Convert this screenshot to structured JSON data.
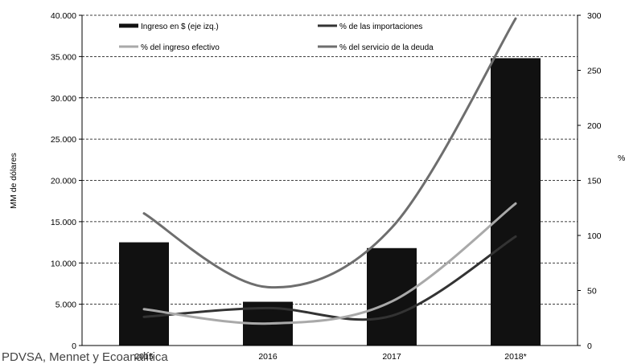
{
  "chart_data": {
    "type": "bar",
    "categories": [
      "2015",
      "2016",
      "2017",
      "2018*"
    ],
    "y_left": {
      "label": "MM de dólares",
      "ylim": [
        0,
        40000
      ],
      "ticks": [
        "0",
        "5.000",
        "10.000",
        "15.000",
        "20.000",
        "25.000",
        "30.000",
        "35.000",
        "40.000"
      ]
    },
    "y_right": {
      "label": "%",
      "ylim": [
        0,
        300
      ],
      "ticks": [
        "0",
        "50",
        "100",
        "150",
        "200",
        "250",
        "300"
      ]
    },
    "grid": "horizontal dashed",
    "legend_position": "top",
    "series": [
      {
        "name": "Ingreso en $ (eje izq.)",
        "type": "bar",
        "axis": "left",
        "color": "#111111",
        "values": [
          12500,
          5300,
          11800,
          34800
        ]
      },
      {
        "name": "% de las importaciones",
        "type": "line",
        "axis": "right",
        "color": "#333333",
        "values": [
          26,
          34,
          27,
          99
        ]
      },
      {
        "name": "% del ingreso efectivo",
        "type": "line",
        "axis": "right",
        "color": "#a9a9a9",
        "values": [
          33,
          20,
          40,
          129
        ]
      },
      {
        "name": "% del servicio de la deuda",
        "type": "line",
        "axis": "right",
        "color": "#6e6e6e",
        "values": [
          120,
          53,
          107,
          297
        ]
      }
    ]
  },
  "footer": {
    "note": "PDVSA, Mennet y Ecoanalítica"
  }
}
